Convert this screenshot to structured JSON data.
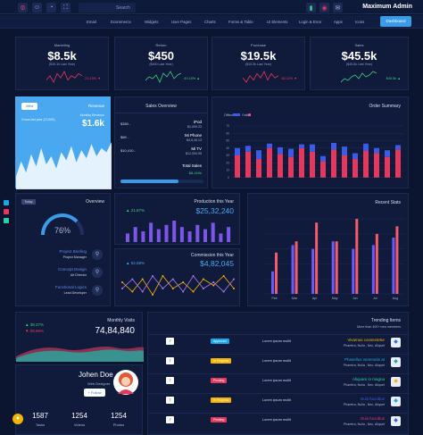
{
  "topbar": {
    "search_label": "Search",
    "brand": "Maximum Admin"
  },
  "menu": [
    "Email",
    "Ecommerce",
    "Widgets",
    "User Pages",
    "Charts",
    "Forms & Table",
    "UI Elements",
    "Login & Error",
    "Apps",
    "Icons"
  ],
  "dashboard_btn": "Dashboard",
  "kpis": [
    {
      "title": "Marketing",
      "value": "$8.5k",
      "sub": "($15.1k Last Year)",
      "change": "21.15%",
      "color": "#e8375c",
      "trend": [
        5,
        7,
        4,
        8,
        6,
        9,
        5,
        7,
        6,
        8,
        7
      ]
    },
    {
      "title": "Return",
      "value": "$450",
      "sub": "($450 Last Year)",
      "change": "40.15%",
      "color": "#3ccf7f",
      "trend": [
        4,
        6,
        5,
        7,
        3,
        8,
        6,
        9,
        5,
        7,
        8
      ]
    },
    {
      "title": "Purchase",
      "value": "$19.5k",
      "sub": "($15.5k Last Year)",
      "change": "48.12%",
      "color": "#e8375c",
      "trend": [
        6,
        4,
        7,
        5,
        8,
        6,
        9,
        5,
        8,
        6,
        7
      ]
    },
    {
      "title": "Sales",
      "value": "$45.5k",
      "sub": "($45.5k Last Year)",
      "change": "$45.5k",
      "color": "#3ccf7f",
      "trend": [
        3,
        5,
        4,
        6,
        7,
        5,
        8,
        6,
        7,
        9,
        8
      ]
    }
  ],
  "revenue": {
    "view": "View",
    "title": "Revenue",
    "today": "Gross last year (13,500)",
    "monthly": "Monthly Revenue",
    "value": "$1.6k",
    "wave": [
      10,
      25,
      14,
      32,
      20,
      38,
      22,
      30,
      18,
      34,
      26,
      40,
      24,
      36,
      28,
      42,
      30,
      38,
      34,
      44
    ]
  },
  "sales_overview": {
    "title": "Sales Overview",
    "items": [
      {
        "price": "$350 -",
        "name": "iPod",
        "sub": "$1,000.23"
      },
      {
        "price": "$6K -",
        "name": "Mi Phone",
        "sub": "$4,5,45.13"
      },
      {
        "price": "$10,410 -",
        "name": "Mi TV",
        "sub": "$12,000,95"
      }
    ],
    "total_label": "Total Sales",
    "total": "$8,459k",
    "progress": 0.7
  },
  "order_summary": {
    "title": "Order Summary",
    "legend": [
      "Offline",
      "Online"
    ],
    "categories": [
      "1",
      "2",
      "3",
      "4",
      "5",
      "6",
      "7",
      "8",
      "9",
      "10",
      "11",
      "12",
      "13",
      "14",
      "15",
      "16"
    ],
    "series": [
      {
        "name": "Offline",
        "values": [
          30,
          35,
          25,
          40,
          32,
          28,
          40,
          35,
          22,
          38,
          30,
          25,
          36,
          33,
          28,
          38
        ],
        "color": "#e8375c"
      },
      {
        "name": "Online",
        "values": [
          10,
          8,
          12,
          6,
          9,
          11,
          5,
          10,
          7,
          9,
          12,
          8,
          10,
          7,
          9,
          6
        ],
        "color": "#3b5be8"
      }
    ],
    "ylim": [
      0,
      70
    ],
    "yticks": [
      "70",
      "60",
      "50",
      "40",
      "30",
      "20",
      "10",
      "0"
    ]
  },
  "overview": {
    "title": "Overview",
    "tag": "Today",
    "percent": "76%",
    "gauge": 0.76,
    "people": [
      {
        "name": "Project Briefing",
        "role": "Project Manager"
      },
      {
        "name": "Concept Design",
        "role": "Art Director"
      },
      {
        "name": "Functional Logics",
        "role": "Lead Developer"
      }
    ]
  },
  "production": {
    "title": "Production this Year",
    "value": "$25,32,240",
    "change": "21.87%",
    "bars": [
      4,
      7,
      5,
      9,
      6,
      8,
      10,
      7,
      5,
      8,
      6,
      9,
      4,
      7
    ]
  },
  "commission": {
    "title": "Commission this Year",
    "value": "$4,82,045",
    "change": "52.58%",
    "line1": [
      6,
      3,
      7,
      2,
      8,
      4,
      6,
      3,
      7,
      5,
      8,
      4
    ],
    "line2": [
      4,
      7,
      3,
      8,
      4,
      7,
      3,
      8,
      4,
      6,
      3,
      7
    ]
  },
  "recent_stats": {
    "title": "Recent Stats",
    "categories": [
      "Feb",
      "Mar",
      "Apr",
      "May",
      "Jun",
      "Jul",
      "Aug"
    ],
    "series": [
      {
        "name": "A",
        "values": [
          30,
          65,
          60,
          70,
          60,
          65,
          75
        ],
        "color": "#6a5af9"
      },
      {
        "name": "B",
        "values": [
          55,
          70,
          95,
          70,
          100,
          80,
          90
        ],
        "color": "#f25c6b"
      }
    ],
    "ylim": [
      0,
      100
    ]
  },
  "monthly_visits": {
    "title": "Monthly Visits",
    "value": "74,84,840",
    "change1": "38.27%",
    "change2": "09.86%"
  },
  "profile": {
    "name": "Johen Doe",
    "role": "Web Designer",
    "follow": "+ Follow",
    "stats": [
      {
        "value": "1587",
        "label": "Tasks"
      },
      {
        "value": "1254",
        "label": "Videos"
      },
      {
        "value": "1254",
        "label": "Photos"
      }
    ]
  },
  "trending": {
    "title": "Trending Items",
    "sub": "More than 400+ new members",
    "rows": [
      {
        "num": "7",
        "badge": "Approved",
        "badge_color": "#1aa7e8",
        "text": "Lorem ipsum mollit",
        "name": "Vivamus consectetur",
        "sub": "Pharetra, Nulla , Nec, Aliquet",
        "name_color": "#f4b400"
      },
      {
        "num": "7",
        "badge": "In Progress",
        "badge_color": "#f4b400",
        "text": "Lorem ipsum mollit",
        "name": "Phasellus venenatis at",
        "sub": "Pharetra, Nulla , Nec, Aliquet",
        "name_color": "#1aa7e8"
      },
      {
        "num": "7",
        "badge": "Pending",
        "badge_color": "#e8375c",
        "text": "Lorem ipsum mollit",
        "name": "Aliquam in magna",
        "sub": "Pharetra, Nulla , Nec, Aliquet",
        "name_color": "#2ad1a2"
      },
      {
        "num": "7",
        "badge": "In Progress",
        "badge_color": "#f4b400",
        "text": "Lorem ipsum mollit",
        "name": "Duis fuucibus",
        "sub": "Pharetra, Nulla , Nec, Aliquet",
        "name_color": "#3b5be8"
      },
      {
        "num": "7",
        "badge": "Pending",
        "badge_color": "#e8375c",
        "text": "Lorem ipsum mollit",
        "name": "Duis fuucibus",
        "sub": "Pharetra, Nulla , Nec, Aliquet",
        "name_color": "#e8375c"
      }
    ]
  }
}
